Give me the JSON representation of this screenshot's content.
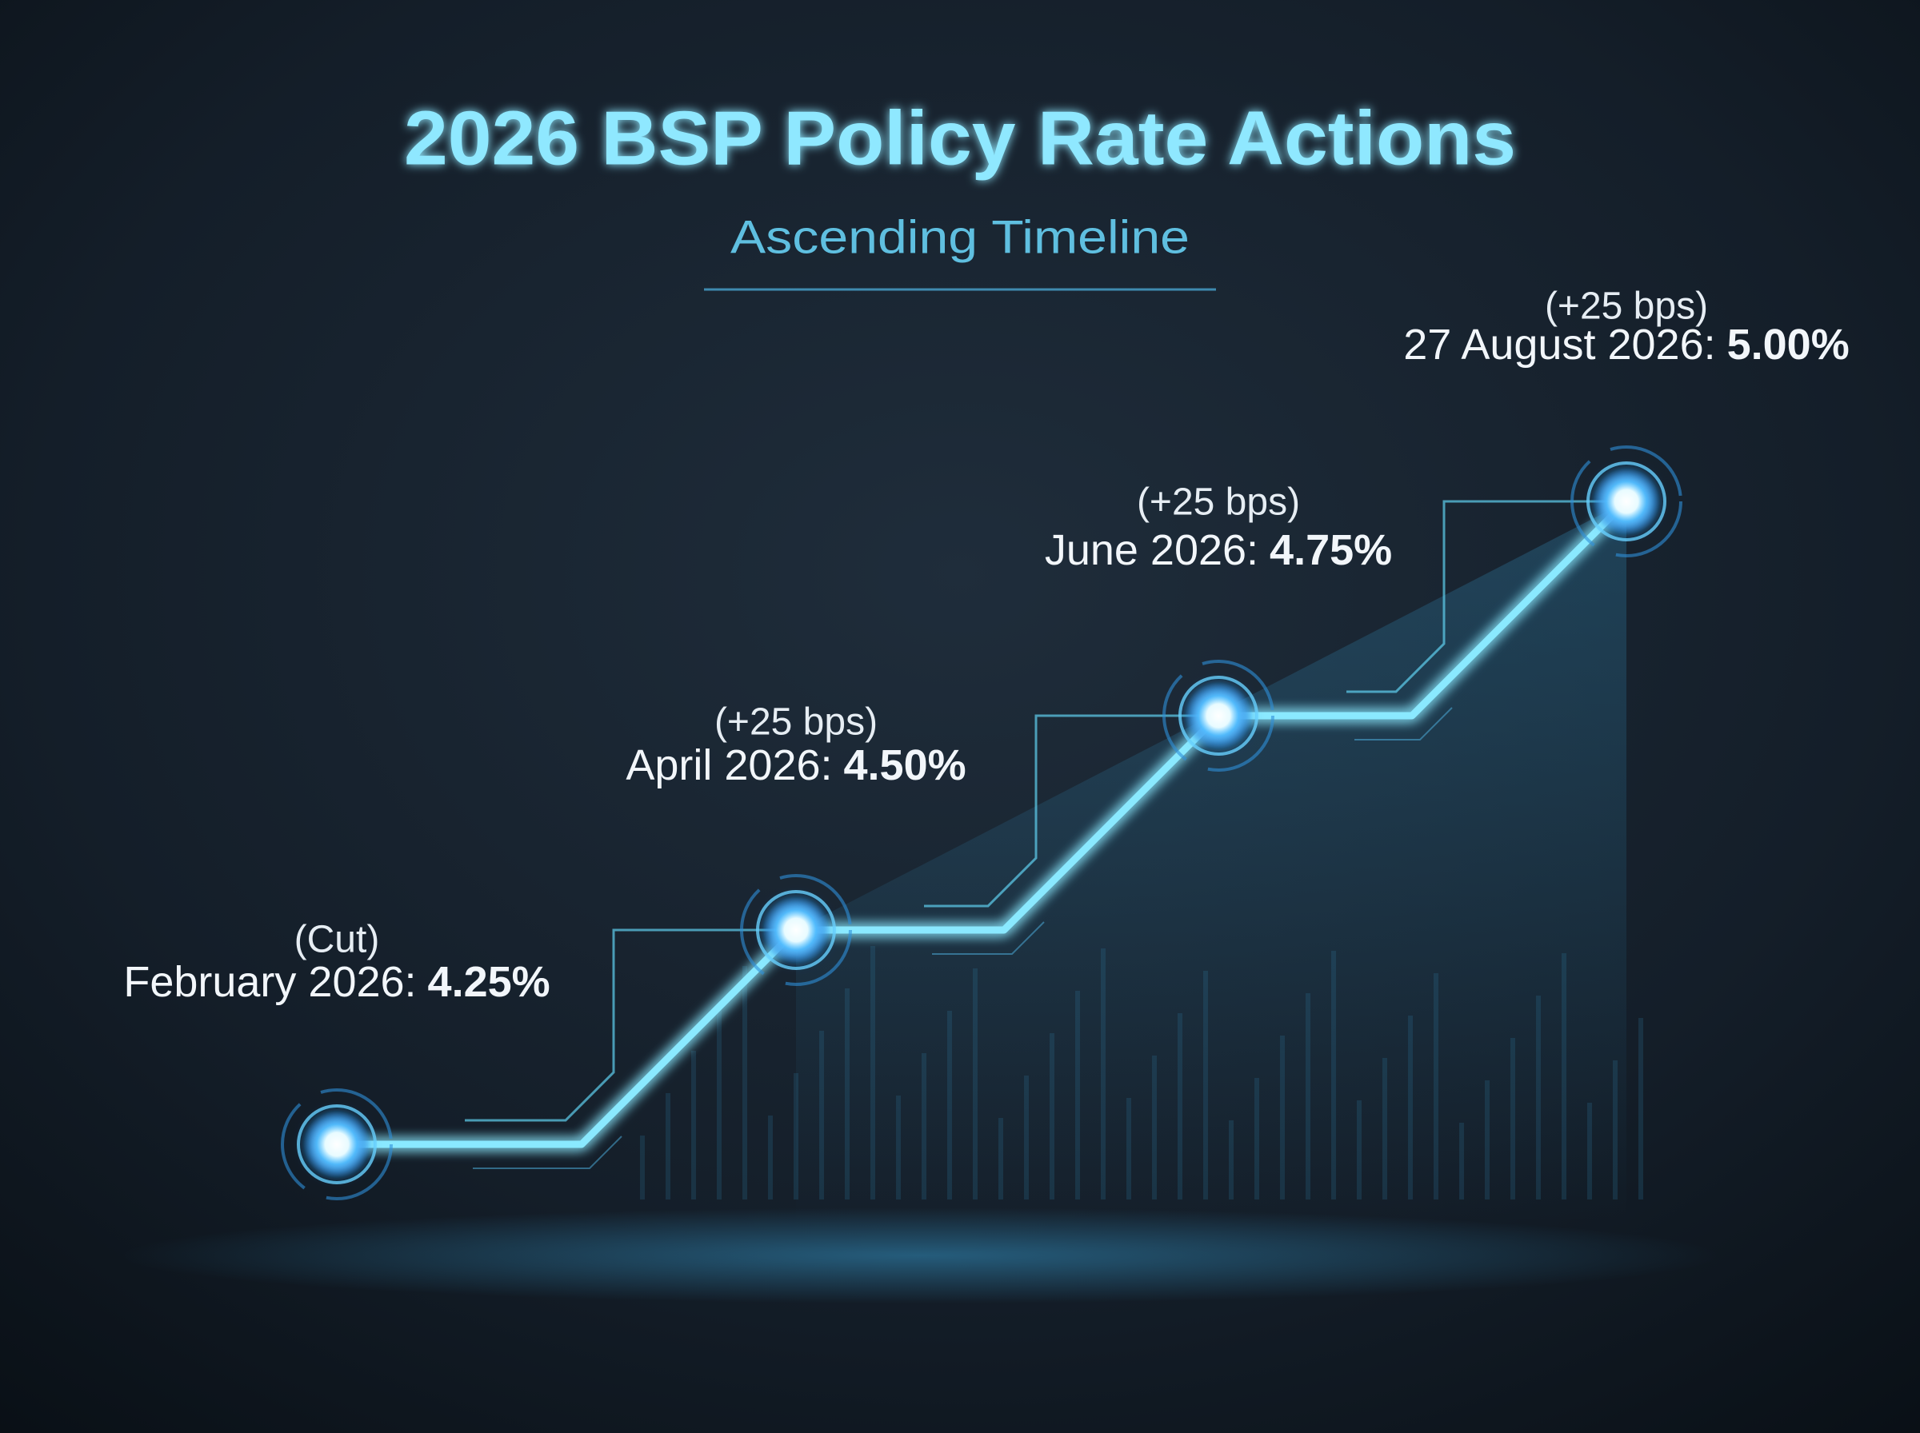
{
  "chart_data": {
    "type": "line",
    "title": "2026 BSP Policy Rate Actions",
    "subtitle": "Ascending Timeline",
    "categories": [
      "February 2026:",
      "April 2026:",
      "June 2026:",
      "27 August 2026:"
    ],
    "values": [
      4.25,
      4.5,
      4.75,
      5.0
    ],
    "value_labels": [
      "4.25%",
      "4.50%",
      "4.75%",
      "5.00%"
    ],
    "notes": [
      "(Cut)",
      "(+25 bps)",
      "(+25 bps)",
      "(+25 bps)"
    ],
    "color": "#8ae9ff"
  }
}
